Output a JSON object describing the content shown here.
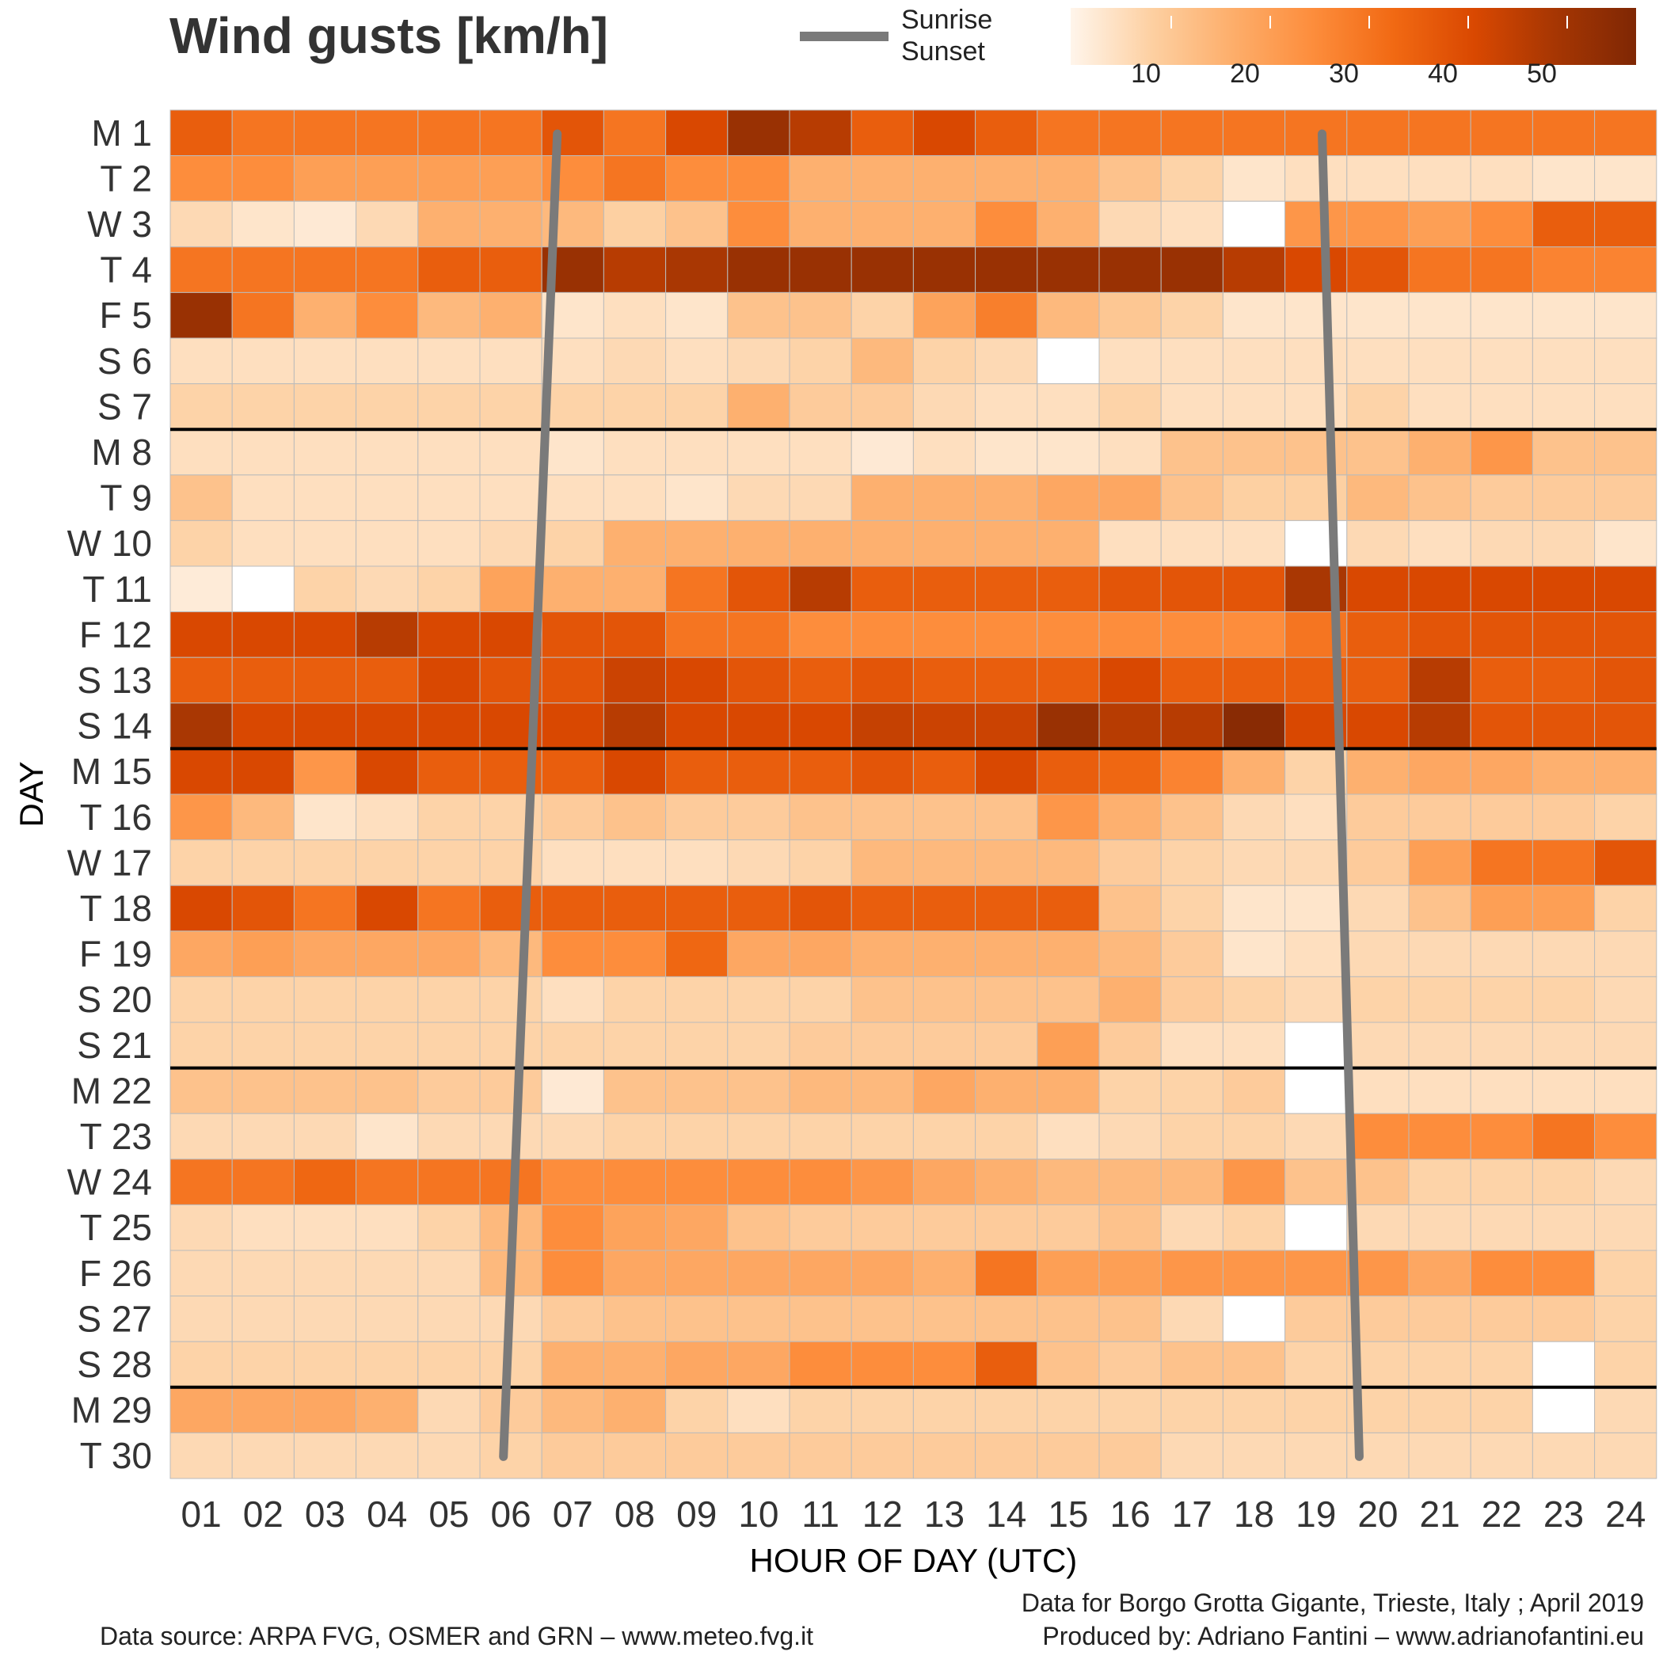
{
  "chart_data": {
    "type": "heatmap",
    "title": "Wind gusts [km/h]",
    "xlabel": "HOUR OF DAY (UTC)",
    "ylabel": "DAY",
    "x_categories": [
      "01",
      "02",
      "03",
      "04",
      "05",
      "06",
      "07",
      "08",
      "09",
      "10",
      "11",
      "12",
      "13",
      "14",
      "15",
      "16",
      "17",
      "18",
      "19",
      "20",
      "21",
      "22",
      "23",
      "24"
    ],
    "y_categories": [
      "M 1",
      "T 2",
      "W 3",
      "T 4",
      "F 5",
      "S 6",
      "S 7",
      "M 8",
      "T 9",
      "W 10",
      "T 11",
      "F 12",
      "S 13",
      "S 14",
      "M 15",
      "T 16",
      "W 17",
      "T 18",
      "F 19",
      "S 20",
      "S 21",
      "M 22",
      "T 23",
      "W 24",
      "T 25",
      "F 26",
      "S 27",
      "S 28",
      "M 29",
      "T 30"
    ],
    "week_separators_after": [
      "S 7",
      "S 14",
      "S 21",
      "S 28"
    ],
    "colorbar": {
      "ticks": [
        10,
        20,
        30,
        40,
        50
      ],
      "range": [
        0,
        60
      ]
    },
    "legend": {
      "line_label_1": "Sunrise",
      "line_label_2": "Sunset",
      "line_color": "#7a7a7a"
    },
    "sunrise_hour": [
      7.25,
      7.22,
      7.19,
      7.16,
      7.13,
      7.1,
      7.07,
      7.04,
      7.01,
      6.98,
      6.95,
      6.92,
      6.89,
      6.86,
      6.83,
      6.8,
      6.77,
      6.74,
      6.71,
      6.68,
      6.65,
      6.62,
      6.59,
      6.56,
      6.53,
      6.5,
      6.47,
      6.44,
      6.41,
      6.38
    ],
    "sunset_hour": [
      19.6,
      19.62,
      19.65,
      19.68,
      19.7,
      19.72,
      19.74,
      19.76,
      19.78,
      19.8,
      19.82,
      19.84,
      19.86,
      19.88,
      19.9,
      19.92,
      19.94,
      19.96,
      19.98,
      20.0,
      20.02,
      20.04,
      20.06,
      20.08,
      20.1,
      20.12,
      20.14,
      20.16,
      20.18,
      20.2
    ],
    "values": [
      [
        40,
        35,
        35,
        35,
        35,
        35,
        42,
        35,
        45,
        55,
        50,
        40,
        45,
        40,
        35,
        35,
        35,
        35,
        35,
        35,
        35,
        35,
        35,
        35
      ],
      [
        30,
        30,
        26,
        26,
        26,
        26,
        30,
        35,
        30,
        30,
        22,
        22,
        22,
        22,
        22,
        18,
        14,
        8,
        10,
        10,
        10,
        10,
        8,
        8
      ],
      [
        12,
        8,
        6,
        12,
        22,
        22,
        20,
        15,
        18,
        30,
        22,
        22,
        22,
        30,
        22,
        12,
        10,
        null,
        28,
        28,
        26,
        30,
        40,
        40
      ],
      [
        35,
        35,
        35,
        35,
        40,
        40,
        55,
        50,
        52,
        55,
        55,
        55,
        55,
        55,
        55,
        55,
        55,
        50,
        45,
        42,
        35,
        35,
        32,
        32
      ],
      [
        55,
        35,
        22,
        30,
        20,
        22,
        8,
        10,
        8,
        18,
        18,
        14,
        25,
        33,
        20,
        17,
        14,
        8,
        8,
        8,
        8,
        8,
        8,
        8
      ],
      [
        10,
        10,
        10,
        10,
        10,
        10,
        10,
        12,
        10,
        12,
        14,
        20,
        14,
        12,
        null,
        10,
        10,
        10,
        10,
        10,
        10,
        10,
        10,
        10
      ],
      [
        14,
        14,
        14,
        14,
        14,
        14,
        14,
        14,
        14,
        22,
        16,
        16,
        12,
        10,
        10,
        14,
        10,
        10,
        10,
        14,
        10,
        10,
        10,
        10
      ],
      [
        10,
        10,
        10,
        10,
        10,
        10,
        8,
        10,
        10,
        10,
        10,
        6,
        10,
        8,
        8,
        10,
        18,
        18,
        18,
        18,
        22,
        28,
        18,
        18
      ],
      [
        18,
        10,
        10,
        10,
        10,
        10,
        10,
        10,
        8,
        12,
        12,
        22,
        22,
        22,
        24,
        24,
        18,
        15,
        15,
        20,
        18,
        16,
        16,
        16
      ],
      [
        14,
        10,
        10,
        10,
        10,
        12,
        14,
        22,
        22,
        22,
        22,
        22,
        22,
        22,
        22,
        10,
        10,
        10,
        null,
        12,
        10,
        12,
        12,
        8
      ],
      [
        5,
        null,
        14,
        12,
        14,
        25,
        22,
        22,
        35,
        42,
        50,
        40,
        40,
        40,
        40,
        42,
        42,
        42,
        52,
        45,
        45,
        45,
        45,
        45
      ],
      [
        45,
        45,
        45,
        50,
        45,
        45,
        42,
        42,
        35,
        35,
        30,
        30,
        30,
        30,
        30,
        30,
        30,
        30,
        35,
        40,
        42,
        42,
        42,
        42
      ],
      [
        40,
        40,
        40,
        40,
        45,
        42,
        42,
        47,
        45,
        42,
        40,
        42,
        40,
        40,
        40,
        45,
        40,
        40,
        40,
        40,
        50,
        40,
        40,
        42
      ],
      [
        52,
        45,
        45,
        45,
        45,
        45,
        45,
        50,
        45,
        45,
        45,
        48,
        47,
        47,
        55,
        50,
        50,
        58,
        45,
        45,
        50,
        42,
        42,
        42
      ],
      [
        45,
        45,
        28,
        45,
        40,
        40,
        40,
        45,
        40,
        40,
        40,
        42,
        40,
        45,
        40,
        38,
        32,
        22,
        14,
        22,
        24,
        24,
        22,
        22
      ],
      [
        28,
        20,
        8,
        10,
        14,
        14,
        16,
        18,
        16,
        16,
        18,
        18,
        18,
        18,
        28,
        22,
        18,
        12,
        10,
        16,
        16,
        16,
        16,
        14
      ],
      [
        14,
        14,
        14,
        14,
        14,
        14,
        10,
        10,
        10,
        12,
        14,
        20,
        20,
        20,
        20,
        16,
        14,
        12,
        12,
        16,
        26,
        35,
        35,
        42
      ],
      [
        45,
        42,
        35,
        45,
        35,
        40,
        40,
        40,
        40,
        40,
        42,
        40,
        40,
        40,
        40,
        18,
        14,
        8,
        8,
        12,
        18,
        26,
        26,
        14
      ],
      [
        24,
        26,
        24,
        24,
        24,
        20,
        30,
        30,
        38,
        24,
        24,
        22,
        22,
        22,
        22,
        20,
        16,
        8,
        10,
        12,
        12,
        12,
        12,
        12
      ],
      [
        14,
        14,
        14,
        14,
        14,
        14,
        10,
        14,
        14,
        14,
        14,
        18,
        18,
        18,
        18,
        22,
        16,
        14,
        12,
        14,
        14,
        14,
        14,
        12
      ],
      [
        14,
        14,
        14,
        14,
        14,
        14,
        14,
        14,
        14,
        14,
        16,
        16,
        16,
        16,
        26,
        16,
        10,
        10,
        null,
        12,
        12,
        12,
        12,
        12
      ],
      [
        18,
        18,
        18,
        18,
        16,
        16,
        6,
        18,
        18,
        18,
        20,
        20,
        24,
        22,
        22,
        14,
        14,
        16,
        null,
        10,
        10,
        10,
        10,
        10
      ],
      [
        12,
        12,
        12,
        8,
        12,
        12,
        12,
        14,
        14,
        14,
        14,
        14,
        14,
        14,
        10,
        12,
        14,
        14,
        12,
        30,
        30,
        30,
        35,
        30
      ],
      [
        35,
        35,
        38,
        35,
        35,
        35,
        30,
        30,
        30,
        30,
        30,
        28,
        24,
        22,
        20,
        20,
        20,
        28,
        18,
        18,
        14,
        14,
        14,
        12
      ],
      [
        12,
        10,
        10,
        10,
        14,
        20,
        30,
        25,
        24,
        18,
        16,
        16,
        16,
        16,
        16,
        18,
        12,
        14,
        null,
        12,
        12,
        12,
        12,
        12
      ],
      [
        12,
        12,
        12,
        12,
        12,
        20,
        30,
        24,
        24,
        24,
        24,
        24,
        22,
        35,
        26,
        26,
        28,
        28,
        28,
        28,
        24,
        30,
        30,
        14
      ],
      [
        12,
        12,
        12,
        12,
        12,
        12,
        16,
        18,
        18,
        18,
        18,
        18,
        18,
        18,
        18,
        18,
        12,
        null,
        16,
        16,
        16,
        16,
        16,
        14
      ],
      [
        14,
        14,
        14,
        14,
        14,
        14,
        22,
        22,
        24,
        24,
        30,
        30,
        30,
        40,
        18,
        16,
        18,
        18,
        14,
        14,
        14,
        14,
        null,
        14
      ],
      [
        24,
        24,
        24,
        22,
        12,
        16,
        20,
        22,
        14,
        10,
        14,
        14,
        14,
        14,
        14,
        14,
        14,
        14,
        14,
        14,
        14,
        14,
        null,
        12
      ],
      [
        12,
        12,
        12,
        12,
        12,
        14,
        16,
        16,
        16,
        16,
        16,
        16,
        16,
        16,
        16,
        16,
        12,
        12,
        12,
        12,
        12,
        12,
        12,
        12
      ]
    ]
  },
  "footer": {
    "data_for": "Data for  Borgo Grotta Gigante, Trieste, Italy ; April 2019",
    "source": "Data source: ARPA FVG, OSMER and GRN – www.meteo.fvg.it",
    "produced": "Produced by: Adriano Fantini  – www.adrianofantini.eu"
  },
  "colors": {
    "scale": [
      "#fff5eb",
      "#fee6ce",
      "#fdd0a2",
      "#fdae6b",
      "#fd8d3c",
      "#f16913",
      "#d94801",
      "#a63603",
      "#7f2704"
    ],
    "missing": "#ffffff",
    "grid": "#bbbbbb",
    "separator": "#000000"
  }
}
